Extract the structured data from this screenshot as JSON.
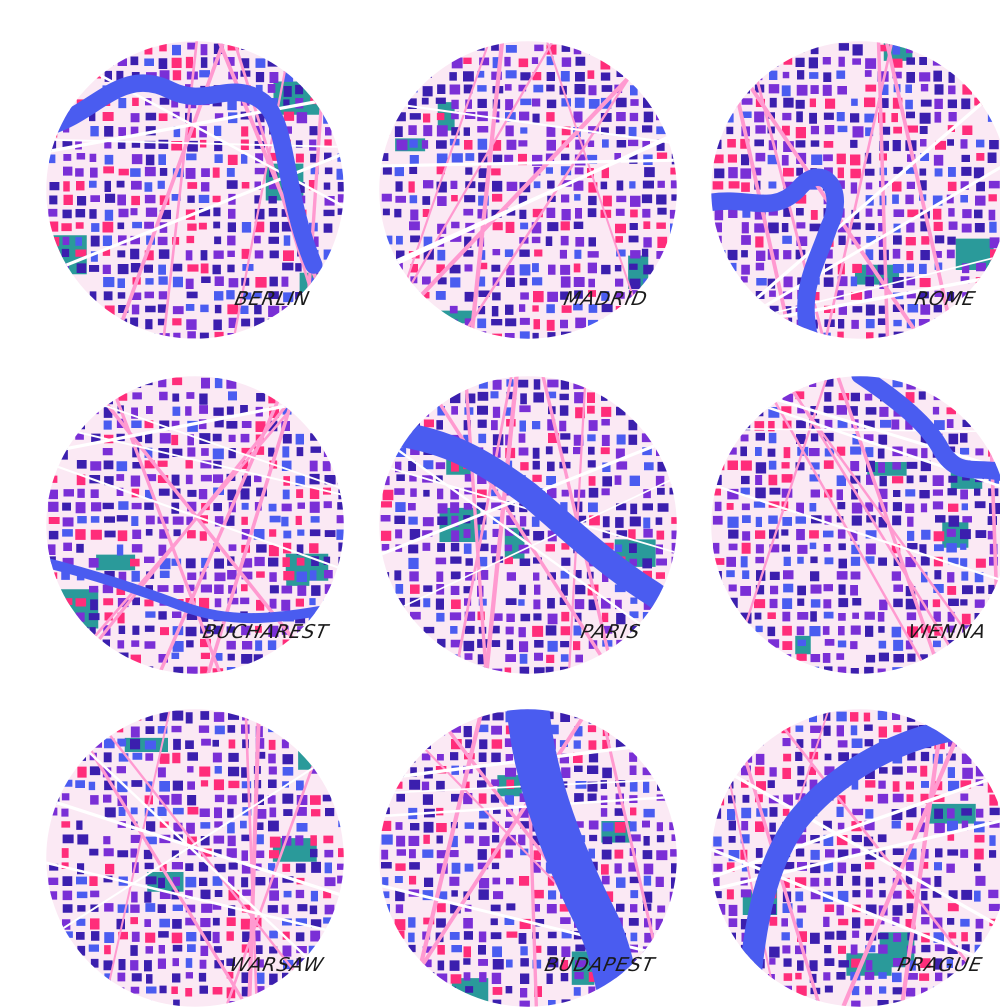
{
  "palette": {
    "background": "#ffffff",
    "block_dark": "#3b1fae",
    "block_purple": "#7a2fd6",
    "block_blue": "#4a5cf0",
    "block_pink": "#ff2d7a",
    "park": "#2a9a9a",
    "river": "#4a5cf0",
    "street": "#ff9ad0",
    "label": "#1a1a1a"
  },
  "maps": [
    {
      "city": "BERLIN",
      "river": "berlin"
    },
    {
      "city": "MADRID",
      "river": "none"
    },
    {
      "city": "ROME",
      "river": "rome"
    },
    {
      "city": "BUCHAREST",
      "river": "bucharest"
    },
    {
      "city": "PARIS",
      "river": "paris"
    },
    {
      "city": "VIENNA",
      "river": "vienna"
    },
    {
      "city": "WARSAW",
      "river": "none"
    },
    {
      "city": "BUDAPEST",
      "river": "budapest"
    },
    {
      "city": "PRAGUE",
      "river": "prague"
    }
  ]
}
